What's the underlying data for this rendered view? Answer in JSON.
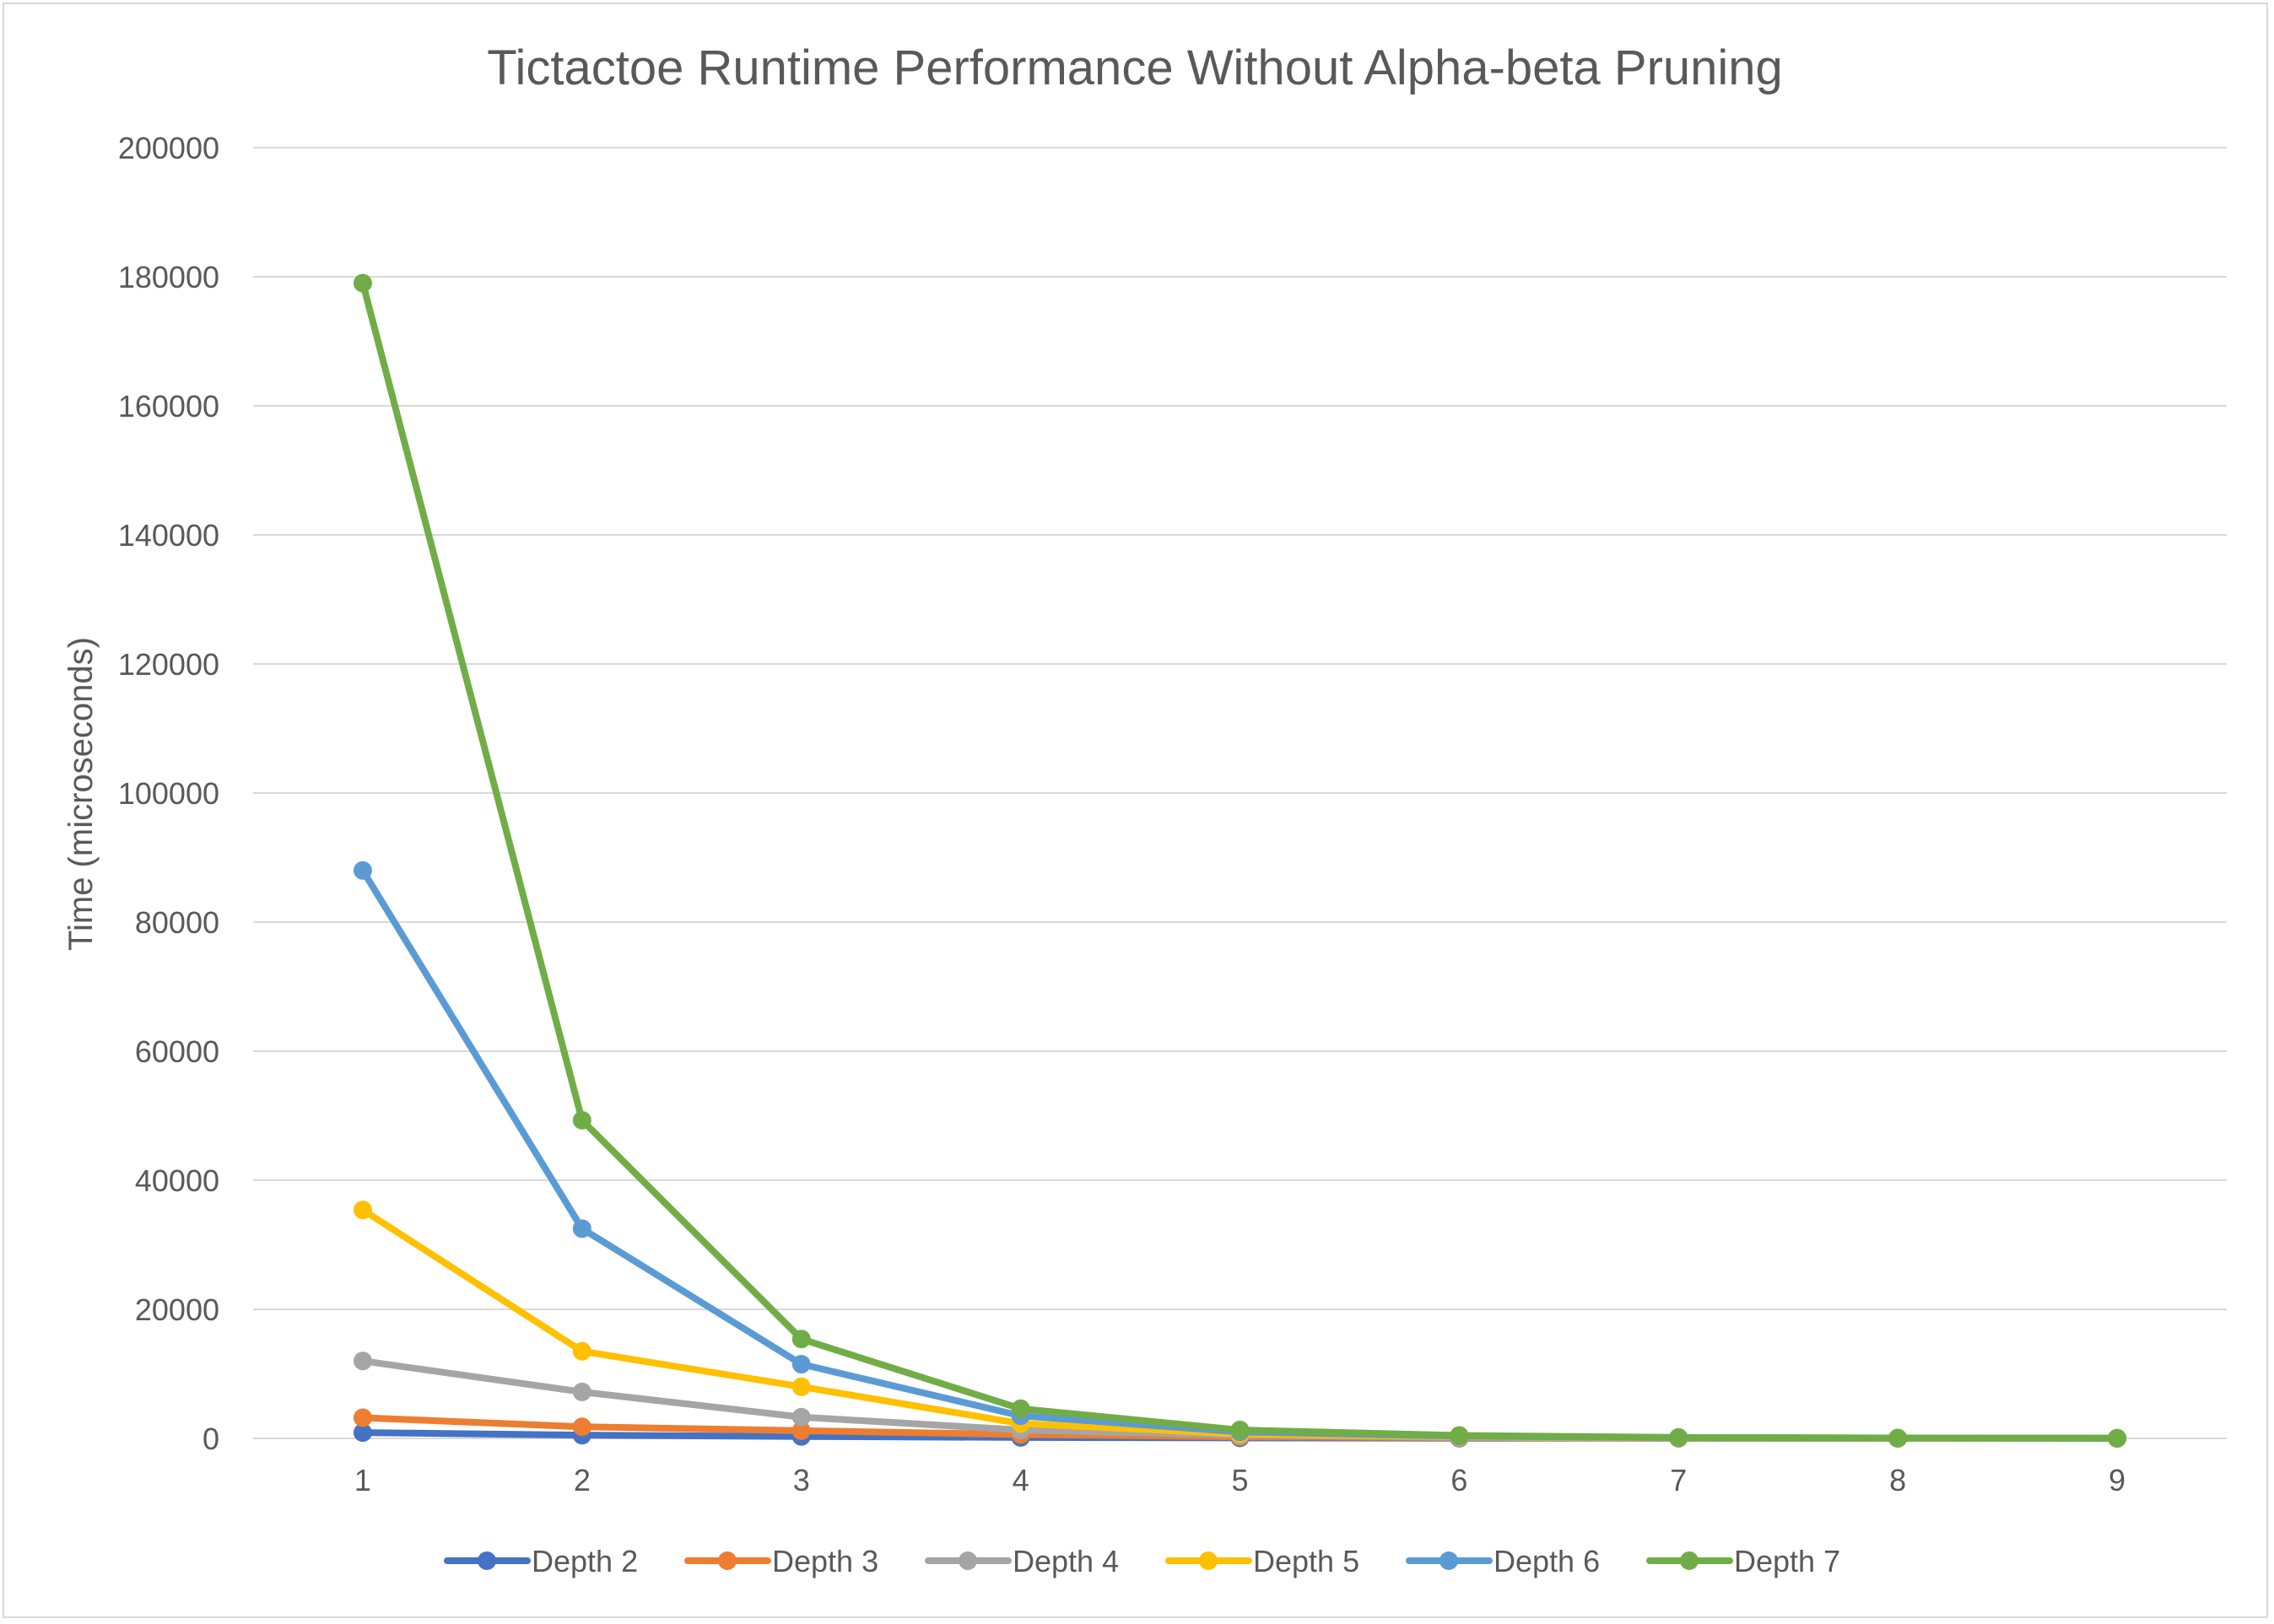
{
  "chart_data": {
    "type": "line",
    "title": "Tictactoe Runtime Performance Without Alpha-beta Pruning",
    "xlabel": "",
    "ylabel": "Time (microseconds)",
    "categories": [
      "1",
      "2",
      "3",
      "4",
      "5",
      "6",
      "7",
      "8",
      "9"
    ],
    "ylim": [
      0,
      200000
    ],
    "yticks": [
      0,
      20000,
      40000,
      60000,
      80000,
      100000,
      120000,
      140000,
      160000,
      180000,
      200000
    ],
    "ytick_labels": [
      "0",
      "20000",
      "40000",
      "60000",
      "80000",
      "100000",
      "120000",
      "140000",
      "160000",
      "180000",
      "200000"
    ],
    "grid": true,
    "legend_position": "bottom",
    "series": [
      {
        "name": "Depth 2",
        "color": "#4472c4",
        "values": [
          900,
          500,
          300,
          150,
          80,
          40,
          20,
          10,
          5
        ]
      },
      {
        "name": "Depth 3",
        "color": "#ed7d31",
        "values": [
          3200,
          1800,
          1200,
          600,
          250,
          120,
          50,
          20,
          10
        ]
      },
      {
        "name": "Depth 4",
        "color": "#a5a5a5",
        "values": [
          12000,
          7200,
          3300,
          1300,
          500,
          200,
          80,
          30,
          15
        ]
      },
      {
        "name": "Depth 5",
        "color": "#ffc000",
        "values": [
          35400,
          13500,
          8000,
          2300,
          700,
          250,
          100,
          40,
          20
        ]
      },
      {
        "name": "Depth 6",
        "color": "#5b9bd5",
        "values": [
          88000,
          32500,
          11500,
          3500,
          1000,
          350,
          130,
          50,
          25
        ]
      },
      {
        "name": "Depth 7",
        "color": "#70ad47",
        "values": [
          179000,
          49300,
          15400,
          4600,
          1300,
          450,
          150,
          60,
          30
        ]
      }
    ]
  }
}
